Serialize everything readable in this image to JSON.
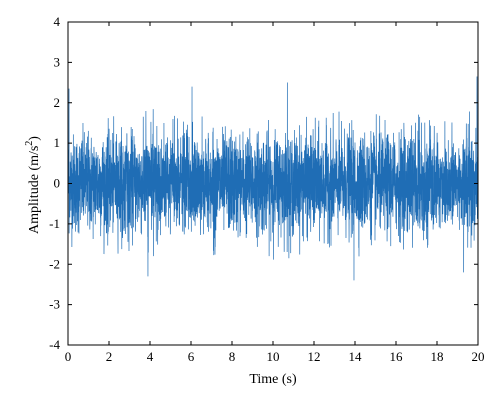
{
  "chart_data": {
    "type": "line",
    "title": "",
    "xlabel": "Time (s)",
    "ylabel": {
      "base": "Amplitude (m/s",
      "sup": "2",
      "close": ")"
    },
    "xlim": [
      0,
      20
    ],
    "ylim": [
      -4,
      4
    ],
    "xticks": [
      "0",
      "2",
      "4",
      "6",
      "8",
      "10",
      "12",
      "14",
      "16",
      "18",
      "20"
    ],
    "yticks": [
      "-4",
      "-3",
      "-2",
      "-1",
      "0",
      "1",
      "2",
      "3",
      "4"
    ],
    "grid": false,
    "legend": "none",
    "series": [
      {
        "color": "#1f6db5",
        "sampling_rate_hz": 200,
        "duration_s": 20,
        "typical_range": [
          -1.6,
          1.6
        ],
        "rms": 0.6,
        "peaks": [
          {
            "x": 0.05,
            "y": 2.35
          },
          {
            "x": 3.9,
            "y": -2.3
          },
          {
            "x": 6.05,
            "y": 2.4
          },
          {
            "x": 10.7,
            "y": 2.5
          },
          {
            "x": 13.95,
            "y": -2.4
          },
          {
            "x": 19.3,
            "y": -2.2
          },
          {
            "x": 19.95,
            "y": 2.65
          }
        ]
      }
    ]
  }
}
